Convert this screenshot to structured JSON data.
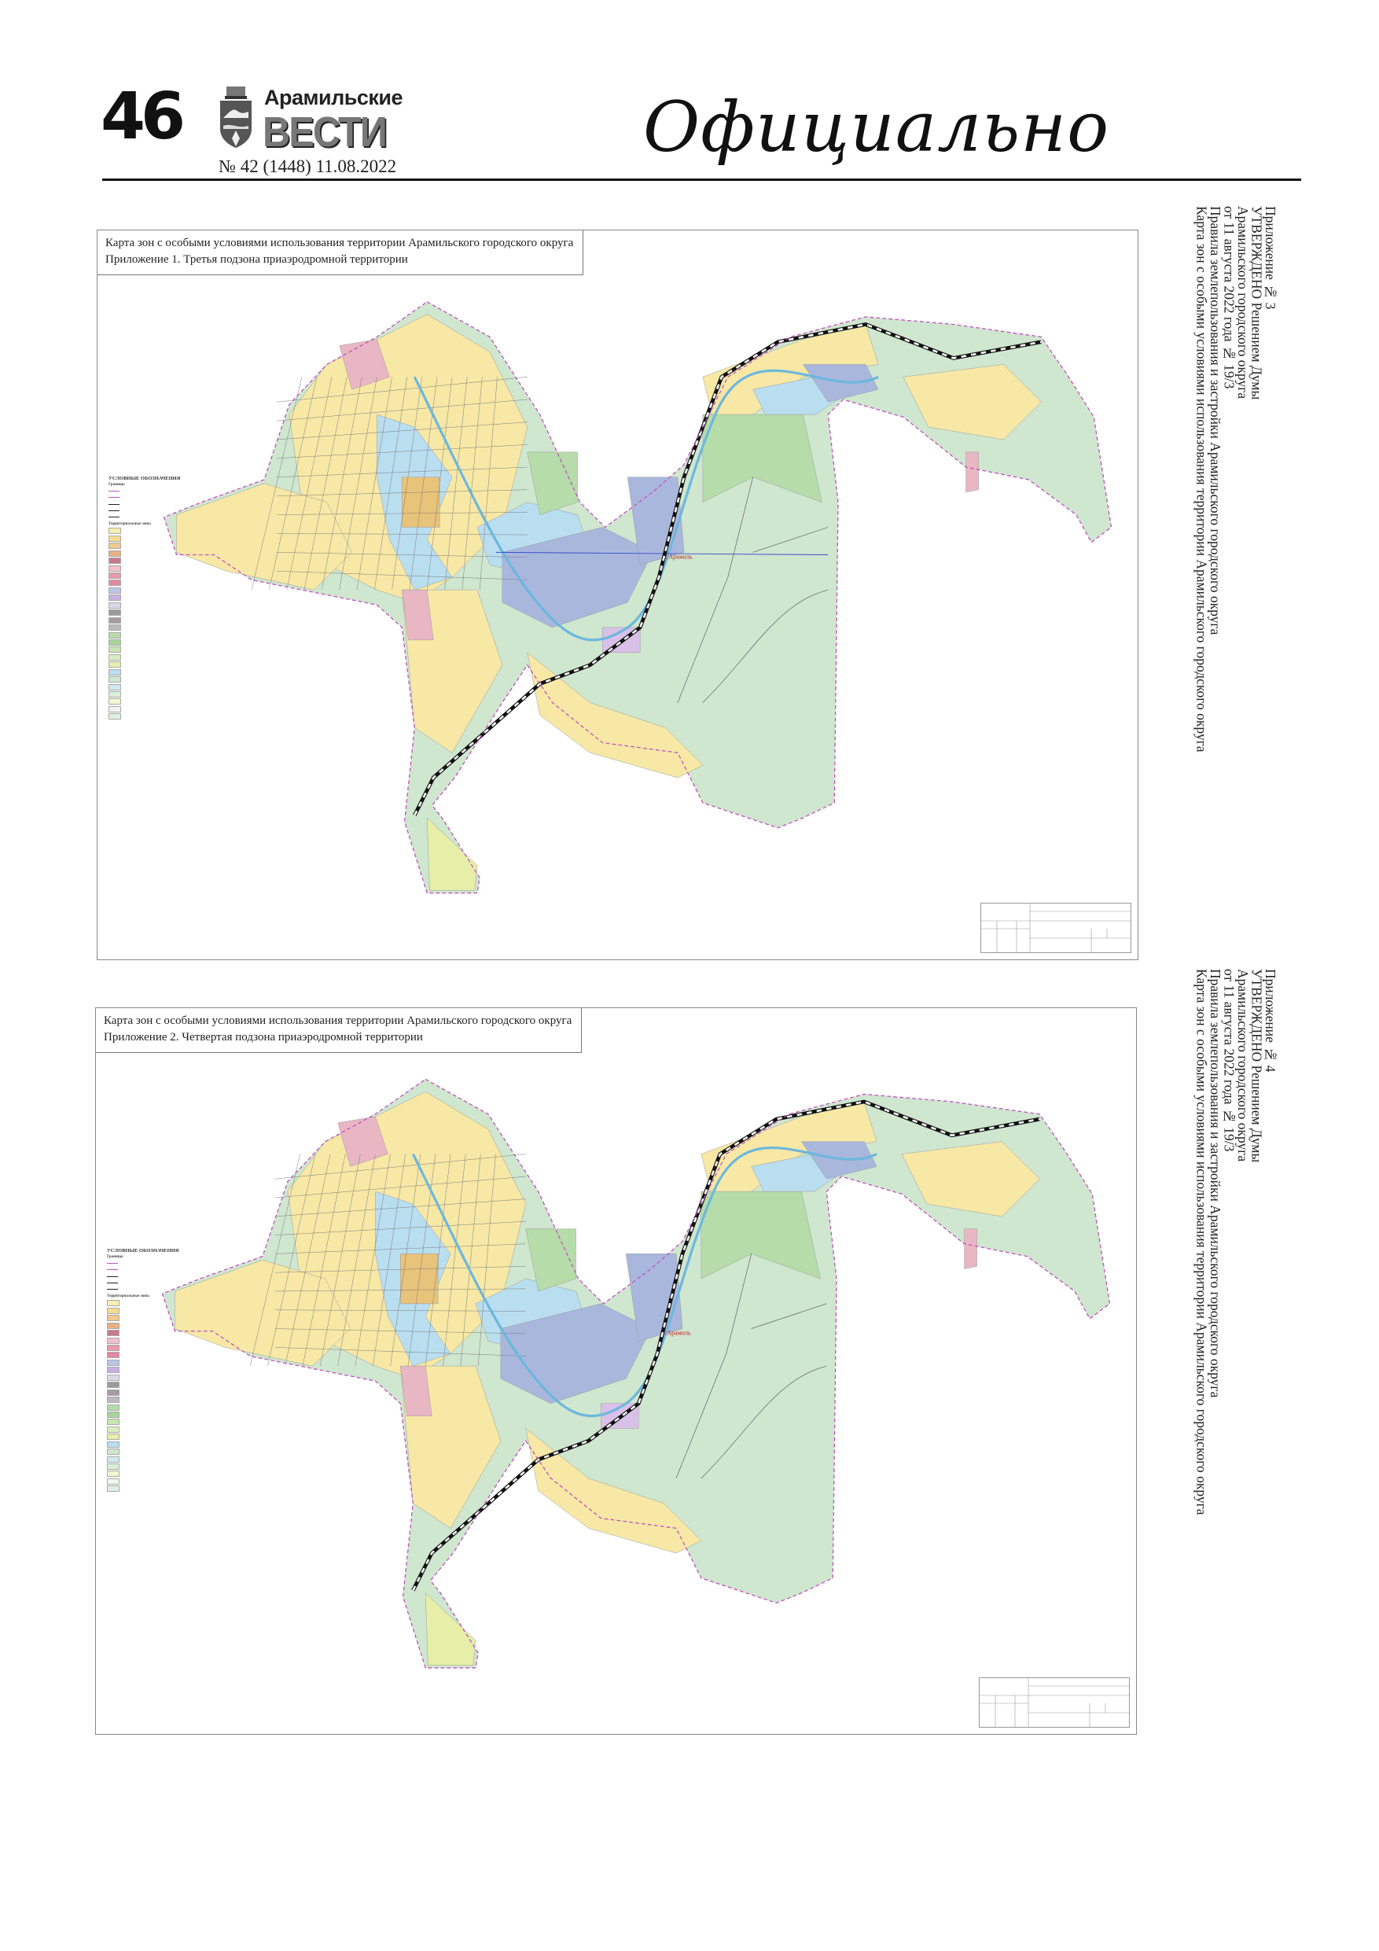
{
  "header": {
    "page_number": "46",
    "brand_top": "Арамильские",
    "brand_main": "ВЕСТИ",
    "issue": "№ 42 (1448) 11.08.2022",
    "section": "Официально"
  },
  "maps": [
    {
      "title_line1": "Карта зон с особыми условиями использования территории Арамильского городского округа",
      "title_line2": "Приложение 1. Третья подзона приаэродромной территории",
      "place_label": "г.Арамиль",
      "legend_heading": "УСЛОВНЫЕ ОБОЗНАЧЕНИЯ",
      "legend_boundaries": "Границы",
      "legend_zones": "Территориальные зоны",
      "side_note": {
        "line1": "Приложение № 3",
        "line2": "УТВЕРЖДЕНО Решением Думы",
        "line3": "Арамильского городского округа",
        "line4": "от 11 августа 2022 года № 19/3",
        "line5": "Правила землепользования и застройки Арамильского городского округа",
        "line6": "Карта зон с особыми условиями использования территории Арамильского городского округа"
      }
    },
    {
      "title_line1": "Карта зон с особыми условиями использования территории Арамильского городского округа",
      "title_line2": "Приложение 2. Четвертая подзона приаэродромной территории",
      "place_label": "г.Арамиль",
      "legend_heading": "УСЛОВНЫЕ ОБОЗНАЧЕНИЯ",
      "legend_boundaries": "Границы",
      "legend_zones": "Территориальные зоны",
      "side_note": {
        "line1": "Приложение № 4",
        "line2": "УТВЕРЖДЕНО Решением Думы",
        "line3": "Арамильского городского округа",
        "line4": "от 11 августа 2022 года № 19/3",
        "line5": "Правила землепользования и застройки Арамильского городского округа",
        "line6": "Карта зон с особыми условиями использования территории Арамильского городского округа"
      }
    }
  ],
  "colors": {
    "forest": "#cfe6cf",
    "residential": "#f7e8a6",
    "water": "#b9def0",
    "public": "#e8b7c3",
    "industrial": "#a9b7dc",
    "boundary": "#c050c0"
  }
}
